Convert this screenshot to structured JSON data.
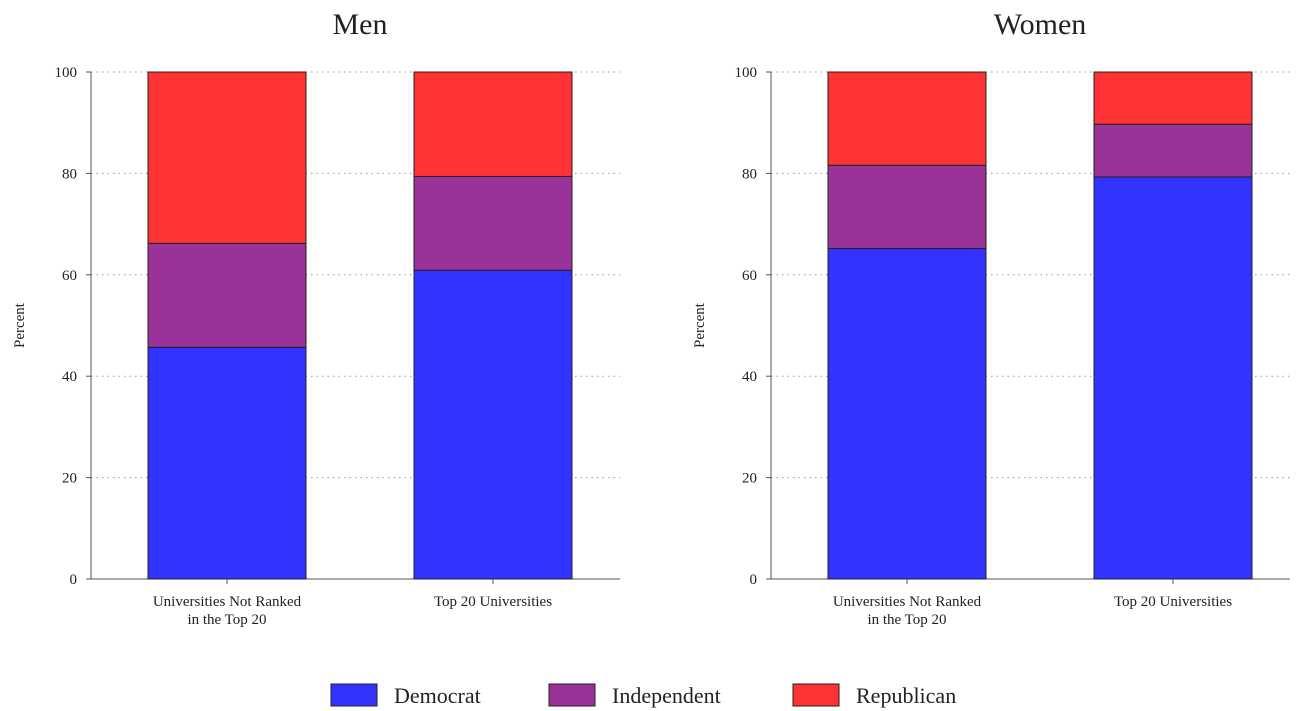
{
  "chart_data": [
    {
      "type": "bar",
      "stacked": true,
      "title": "Men",
      "ylabel": "Percent",
      "xlabel": "",
      "ylim": [
        0,
        100
      ],
      "yticks": [
        0,
        20,
        40,
        60,
        80,
        100
      ],
      "grid": true,
      "categories": [
        [
          "Universities Not Ranked",
          "in the Top 20"
        ],
        [
          "Top 20 Universities"
        ]
      ],
      "series": [
        {
          "name": "Democrat",
          "color": "#3333ff",
          "values": [
            45.7,
            60.9
          ]
        },
        {
          "name": "Independent",
          "color": "#993399",
          "values": [
            20.5,
            18.5
          ]
        },
        {
          "name": "Republican",
          "color": "#ff3333",
          "values": [
            33.8,
            20.6
          ]
        }
      ]
    },
    {
      "type": "bar",
      "stacked": true,
      "title": "Women",
      "ylabel": "Percent",
      "xlabel": "",
      "ylim": [
        0,
        100
      ],
      "yticks": [
        0,
        20,
        40,
        60,
        80,
        100
      ],
      "grid": true,
      "categories": [
        [
          "Universities Not Ranked",
          "in the Top 20"
        ],
        [
          "Top 20 Universities"
        ]
      ],
      "series": [
        {
          "name": "Democrat",
          "color": "#3333ff",
          "values": [
            65.2,
            79.3
          ]
        },
        {
          "name": "Independent",
          "color": "#993399",
          "values": [
            16.4,
            10.4
          ]
        },
        {
          "name": "Republican",
          "color": "#ff3333",
          "values": [
            18.4,
            10.3
          ]
        }
      ]
    }
  ],
  "legend": {
    "placement": "bottom",
    "items": [
      {
        "label": "Democrat",
        "color": "#3333ff"
      },
      {
        "label": "Independent",
        "color": "#993399"
      },
      {
        "label": "Republican",
        "color": "#ff3333"
      }
    ]
  }
}
